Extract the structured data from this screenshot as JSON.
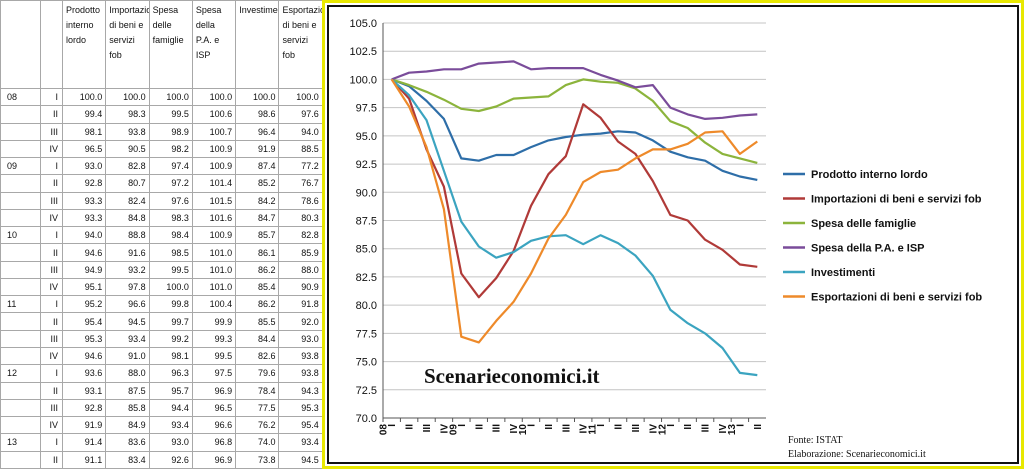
{
  "table": {
    "headers": [
      "Prodotto interno lordo",
      "Importazioni di beni e servizi fob",
      "Spesa delle famiglie",
      "Spesa della P.A. e ISP",
      "Investimenti",
      "Esportazioni di beni e servizi fob"
    ],
    "rows": [
      {
        "year": "08",
        "q": "I",
        "v": [
          "100.0",
          "100.0",
          "100.0",
          "100.0",
          "100.0",
          "100.0"
        ]
      },
      {
        "year": "",
        "q": "II",
        "v": [
          "99.4",
          "98.3",
          "99.5",
          "100.6",
          "98.6",
          "97.6"
        ]
      },
      {
        "year": "",
        "q": "III",
        "v": [
          "98.1",
          "93.8",
          "98.9",
          "100.7",
          "96.4",
          "94.0"
        ]
      },
      {
        "year": "",
        "q": "IV",
        "v": [
          "96.5",
          "90.5",
          "98.2",
          "100.9",
          "91.9",
          "88.5"
        ]
      },
      {
        "year": "09",
        "q": "I",
        "v": [
          "93.0",
          "82.8",
          "97.4",
          "100.9",
          "87.4",
          "77.2"
        ]
      },
      {
        "year": "",
        "q": "II",
        "v": [
          "92.8",
          "80.7",
          "97.2",
          "101.4",
          "85.2",
          "76.7"
        ]
      },
      {
        "year": "",
        "q": "III",
        "v": [
          "93.3",
          "82.4",
          "97.6",
          "101.5",
          "84.2",
          "78.6"
        ]
      },
      {
        "year": "",
        "q": "IV",
        "v": [
          "93.3",
          "84.8",
          "98.3",
          "101.6",
          "84.7",
          "80.3"
        ]
      },
      {
        "year": "10",
        "q": "I",
        "v": [
          "94.0",
          "88.8",
          "98.4",
          "100.9",
          "85.7",
          "82.8"
        ]
      },
      {
        "year": "",
        "q": "II",
        "v": [
          "94.6",
          "91.6",
          "98.5",
          "101.0",
          "86.1",
          "85.9"
        ]
      },
      {
        "year": "",
        "q": "III",
        "v": [
          "94.9",
          "93.2",
          "99.5",
          "101.0",
          "86.2",
          "88.0"
        ]
      },
      {
        "year": "",
        "q": "IV",
        "v": [
          "95.1",
          "97.8",
          "100.0",
          "101.0",
          "85.4",
          "90.9"
        ]
      },
      {
        "year": "11",
        "q": "I",
        "v": [
          "95.2",
          "96.6",
          "99.8",
          "100.4",
          "86.2",
          "91.8"
        ]
      },
      {
        "year": "",
        "q": "II",
        "v": [
          "95.4",
          "94.5",
          "99.7",
          "99.9",
          "85.5",
          "92.0"
        ]
      },
      {
        "year": "",
        "q": "III",
        "v": [
          "95.3",
          "93.4",
          "99.2",
          "99.3",
          "84.4",
          "93.0"
        ]
      },
      {
        "year": "",
        "q": "IV",
        "v": [
          "94.6",
          "91.0",
          "98.1",
          "99.5",
          "82.6",
          "93.8"
        ]
      },
      {
        "year": "12",
        "q": "I",
        "v": [
          "93.6",
          "88.0",
          "96.3",
          "97.5",
          "79.6",
          "93.8"
        ]
      },
      {
        "year": "",
        "q": "II",
        "v": [
          "93.1",
          "87.5",
          "95.7",
          "96.9",
          "78.4",
          "94.3"
        ]
      },
      {
        "year": "",
        "q": "III",
        "v": [
          "92.8",
          "85.8",
          "94.4",
          "96.5",
          "77.5",
          "95.3"
        ]
      },
      {
        "year": "",
        "q": "IV",
        "v": [
          "91.9",
          "84.9",
          "93.4",
          "96.6",
          "76.2",
          "95.4"
        ]
      },
      {
        "year": "13",
        "q": "I",
        "v": [
          "91.4",
          "83.6",
          "93.0",
          "96.8",
          "74.0",
          "93.4"
        ]
      },
      {
        "year": "",
        "q": "II",
        "v": [
          "91.1",
          "83.4",
          "92.6",
          "96.9",
          "73.8",
          "94.5"
        ]
      }
    ]
  },
  "chart_data": {
    "type": "line",
    "title": "",
    "xlabel": "",
    "ylabel": "",
    "ylim": [
      70.0,
      105.0
    ],
    "ytick_labels": [
      "70.0",
      "72.5",
      "75.0",
      "77.5",
      "80.0",
      "82.5",
      "85.0",
      "87.5",
      "90.0",
      "92.5",
      "95.0",
      "97.5",
      "100.0",
      "102.5",
      "105.0"
    ],
    "x_quarters": [
      "I",
      "II",
      "III",
      "IV",
      "I",
      "II",
      "III",
      "IV",
      "I",
      "II",
      "III",
      "IV",
      "I",
      "II",
      "III",
      "IV",
      "I",
      "II",
      "III",
      "IV",
      "I",
      "II"
    ],
    "x_years": [
      "08",
      "09",
      "10",
      "11",
      "12",
      "13"
    ],
    "grid": "horizontal",
    "legend_position": "right",
    "series": [
      {
        "name": "Prodotto interno lordo",
        "color": "#2e6ea8",
        "values": [
          100.0,
          99.4,
          98.1,
          96.5,
          93.0,
          92.8,
          93.3,
          93.3,
          94.0,
          94.6,
          94.9,
          95.1,
          95.2,
          95.4,
          95.3,
          94.6,
          93.6,
          93.1,
          92.8,
          91.9,
          91.4,
          91.1
        ]
      },
      {
        "name": "Importazioni di beni e servizi fob",
        "color": "#b03a38",
        "values": [
          100.0,
          98.3,
          93.8,
          90.5,
          82.8,
          80.7,
          82.4,
          84.8,
          88.8,
          91.6,
          93.2,
          97.8,
          96.6,
          94.5,
          93.4,
          91.0,
          88.0,
          87.5,
          85.8,
          84.9,
          83.6,
          83.4
        ]
      },
      {
        "name": "Spesa delle famiglie",
        "color": "#8cb43c",
        "values": [
          100.0,
          99.5,
          98.9,
          98.2,
          97.4,
          97.2,
          97.6,
          98.3,
          98.4,
          98.5,
          99.5,
          100.0,
          99.8,
          99.7,
          99.2,
          98.1,
          96.3,
          95.7,
          94.4,
          93.4,
          93.0,
          92.6
        ]
      },
      {
        "name": "Spesa della P.A. e ISP",
        "color": "#7a4c9a",
        "values": [
          100.0,
          100.6,
          100.7,
          100.9,
          100.9,
          101.4,
          101.5,
          101.6,
          100.9,
          101.0,
          101.0,
          101.0,
          100.4,
          99.9,
          99.3,
          99.5,
          97.5,
          96.9,
          96.5,
          96.6,
          96.8,
          96.9
        ]
      },
      {
        "name": "Investimenti",
        "color": "#3ba4c0",
        "values": [
          100.0,
          98.6,
          96.4,
          91.9,
          87.4,
          85.2,
          84.2,
          84.7,
          85.7,
          86.1,
          86.2,
          85.4,
          86.2,
          85.5,
          84.4,
          82.6,
          79.6,
          78.4,
          77.5,
          76.2,
          74.0,
          73.8
        ]
      },
      {
        "name": "Esportazioni di beni e servizi fob",
        "color": "#ee8a2a",
        "values": [
          100.0,
          97.6,
          94.0,
          88.5,
          77.2,
          76.7,
          78.6,
          80.3,
          82.8,
          85.9,
          88.0,
          90.9,
          91.8,
          92.0,
          93.0,
          93.8,
          93.8,
          94.3,
          95.3,
          95.4,
          93.4,
          94.5
        ]
      }
    ]
  },
  "watermark": "Scenarieconomici.it",
  "source": {
    "line1": "Fonte: ISTAT",
    "line2": "Elaborazione: Scenarieconomici.it"
  }
}
